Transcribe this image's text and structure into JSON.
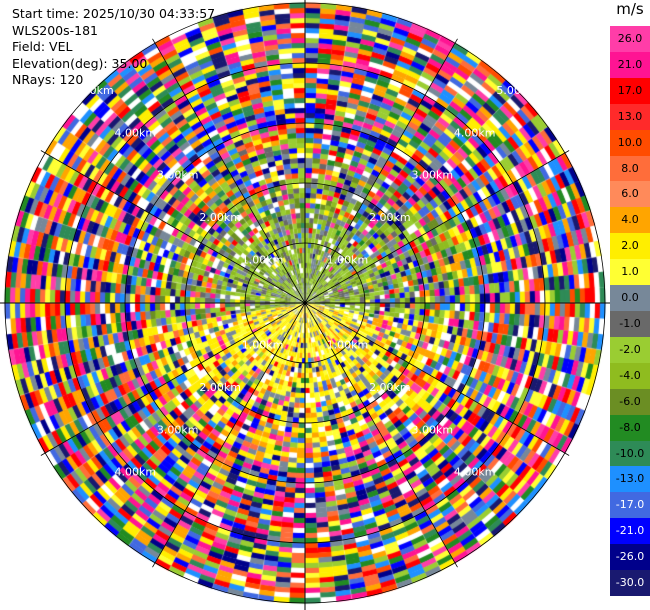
{
  "info": {
    "start_time": "Start time: 2025/10/30 04:33:57",
    "instrument": "WLS200s-181",
    "field": "Field: VEL",
    "elevation": "Elevation(deg): 35.00",
    "nrays": "NRays: 120"
  },
  "colorbar": {
    "unit": "m/s",
    "levels": [
      {
        "label": "26.0",
        "color": "#ff3da8"
      },
      {
        "label": "21.0",
        "color": "#ff1493"
      },
      {
        "label": "17.0",
        "color": "#ff0000"
      },
      {
        "label": "13.0",
        "color": "#ff2a2a"
      },
      {
        "label": "10.0",
        "color": "#ff4c00"
      },
      {
        "label": "8.0",
        "color": "#ff6d3a"
      },
      {
        "label": "6.0",
        "color": "#ff8a5a"
      },
      {
        "label": "4.0",
        "color": "#ffa500"
      },
      {
        "label": "2.0",
        "color": "#ffee00"
      },
      {
        "label": "1.0",
        "color": "#ffff33"
      },
      {
        "label": "0.0",
        "color": "#778899"
      },
      {
        "label": "-1.0",
        "color": "#696969"
      },
      {
        "label": "-2.0",
        "color": "#9acd32"
      },
      {
        "label": "-4.0",
        "color": "#8fbc1f"
      },
      {
        "label": "-6.0",
        "color": "#6b8e23"
      },
      {
        "label": "-8.0",
        "color": "#228b22"
      },
      {
        "label": "-10.0",
        "color": "#2e8b57"
      },
      {
        "label": "-13.0",
        "color": "#1e90ff"
      },
      {
        "label": "-17.0",
        "color": "#4169e1"
      },
      {
        "label": "-21.0",
        "color": "#0000ff"
      },
      {
        "label": "-26.0",
        "color": "#00008b"
      },
      {
        "label": "-30.0",
        "color": "#191970"
      }
    ],
    "bottom_label": "-30.0"
  },
  "ppi": {
    "rays": 120,
    "ring_labels": [
      "1.00km",
      "2.00km",
      "3.00km",
      "4.00km",
      "5.00km"
    ],
    "max_range_km": 5.4
  }
}
